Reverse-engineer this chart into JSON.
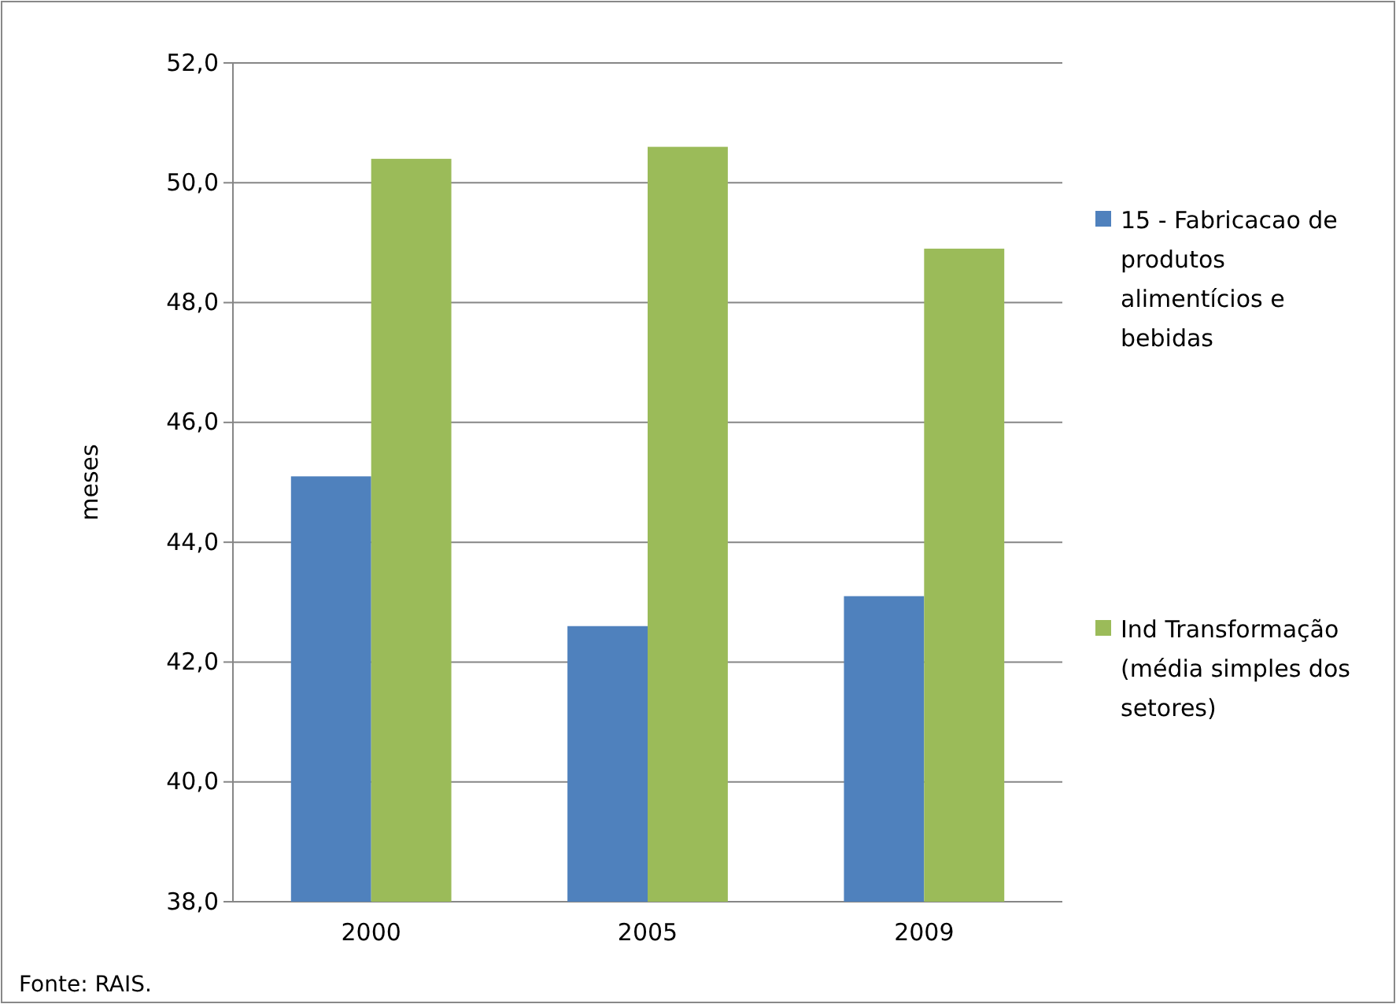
{
  "chart_data": {
    "type": "bar",
    "ylabel": "meses",
    "categories": [
      "2000",
      "2005",
      "2009"
    ],
    "series": [
      {
        "name": "15 - Fabricacao de produtos alimentícios e bebidas",
        "color": "#4f81bd",
        "values": [
          45.1,
          42.6,
          43.1
        ]
      },
      {
        "name": "Ind Transformação (média simples dos setores)",
        "color": "#9bbb59",
        "values": [
          50.4,
          50.6,
          48.9
        ]
      }
    ],
    "ylim": [
      38,
      52
    ],
    "yticks": [
      {
        "value": 38,
        "label": "38,0"
      },
      {
        "value": 40,
        "label": "40,0"
      },
      {
        "value": 42,
        "label": "42,0"
      },
      {
        "value": 44,
        "label": "44,0"
      },
      {
        "value": 46,
        "label": "46,0"
      },
      {
        "value": 48,
        "label": "48,0"
      },
      {
        "value": 50,
        "label": "50,0"
      },
      {
        "value": 52,
        "label": "52,0"
      }
    ],
    "grid": "y",
    "legend": "right",
    "annotations": [
      "Fonte: RAIS."
    ]
  }
}
